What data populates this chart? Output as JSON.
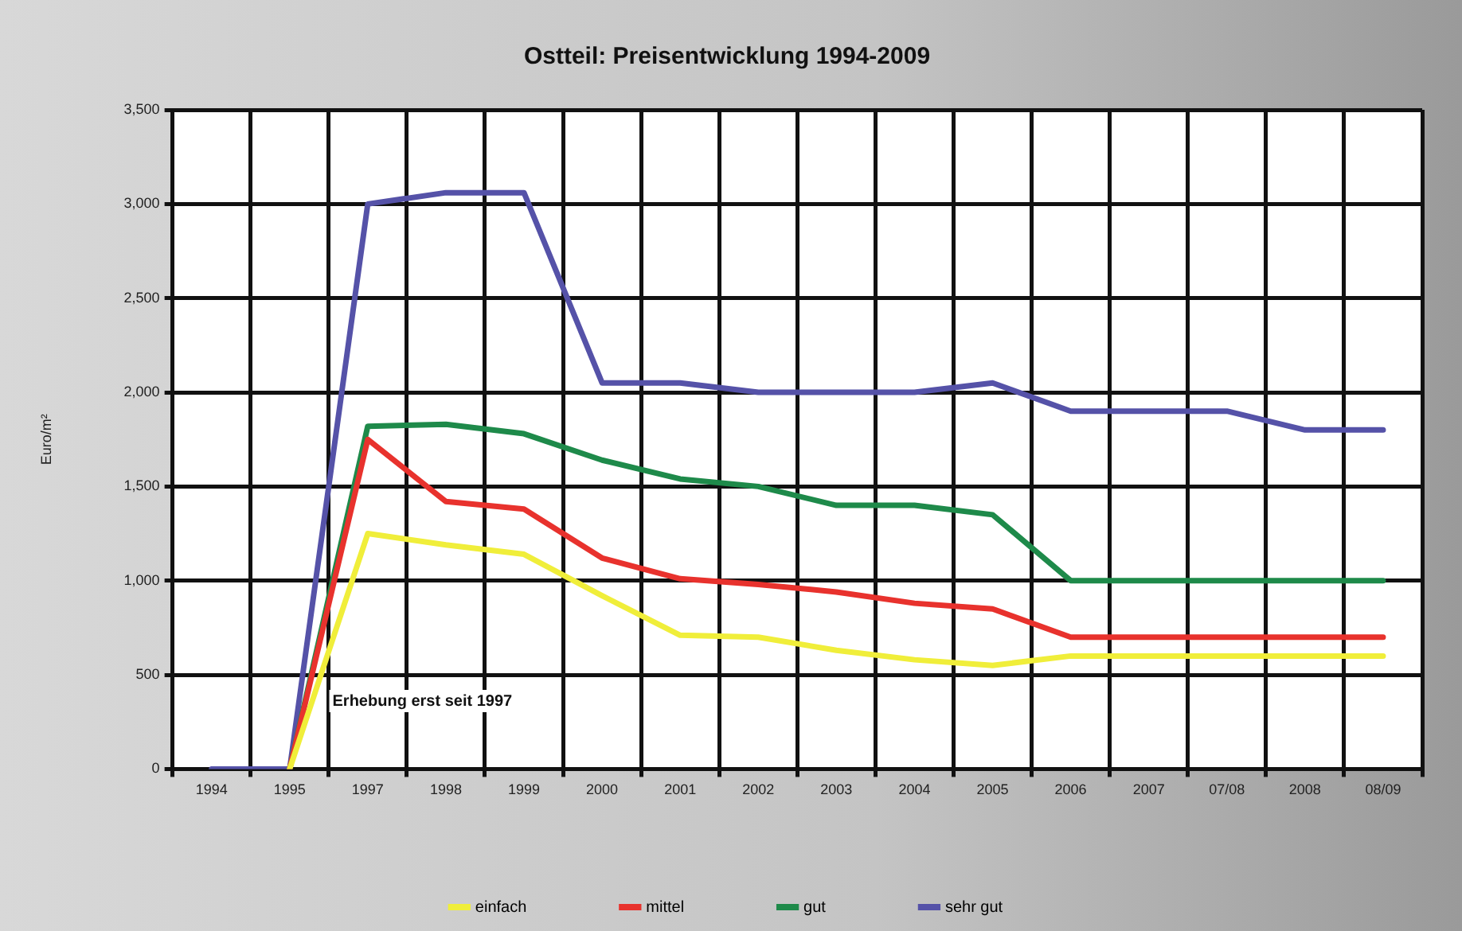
{
  "chart_data": {
    "type": "line",
    "title": "Ostteil: Preisentwicklung 1994-2009",
    "ylabel": "Euro/m²",
    "categories": [
      "1994",
      "1995",
      "1997",
      "1998",
      "1999",
      "2000",
      "2001",
      "2002",
      "2003",
      "2004",
      "2005",
      "2006",
      "2007",
      "07/08",
      "2008",
      "08/09"
    ],
    "series": [
      {
        "name": "einfach",
        "color": "#f0ee3a",
        "values": [
          null,
          0,
          1250,
          1190,
          1140,
          920,
          710,
          700,
          630,
          580,
          550,
          600,
          600,
          600,
          600,
          600
        ]
      },
      {
        "name": "mittel",
        "color": "#e8322d",
        "values": [
          null,
          0,
          1750,
          1420,
          1380,
          1120,
          1010,
          980,
          940,
          880,
          850,
          700,
          700,
          700,
          700,
          700
        ]
      },
      {
        "name": "gut",
        "color": "#1e8a4a",
        "values": [
          null,
          0,
          1820,
          1830,
          1780,
          1640,
          1540,
          1500,
          1400,
          1400,
          1350,
          1000,
          1000,
          1000,
          1000,
          1000
        ]
      },
      {
        "name": "sehr gut",
        "color": "#5552a8",
        "values": [
          0,
          0,
          3000,
          3060,
          3060,
          2050,
          2050,
          2000,
          2000,
          2000,
          2050,
          1900,
          1900,
          1900,
          1800,
          1800
        ]
      }
    ],
    "ylim": [
      0,
      3500
    ],
    "yticks": [
      0,
      500,
      {
        "value": 1000,
        "label": "1,000"
      },
      {
        "value": 1500,
        "label": "1,500"
      },
      {
        "value": 2000,
        "label": "2,000"
      },
      {
        "value": 2500,
        "label": "2,500"
      },
      {
        "value": 3000,
        "label": "3,000"
      },
      {
        "value": 3500,
        "label": "3,500"
      }
    ],
    "grid": true,
    "legend": "bottom",
    "marker": "none",
    "line_style": "solid",
    "annotations": [
      "Erhebung erst seit 1997"
    ]
  }
}
